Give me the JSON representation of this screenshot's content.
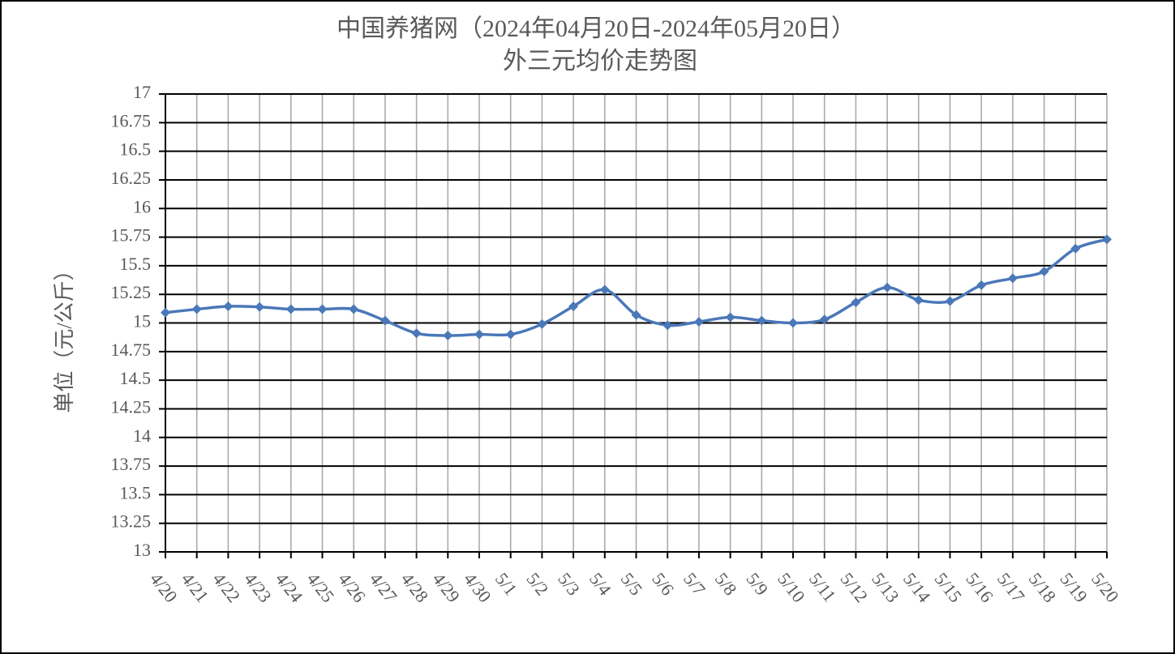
{
  "chart_data": {
    "type": "line",
    "title": "中国养猪网（2024年04月20日-2024年05月20日）",
    "subtitle": "外三元均价走势图",
    "y_label": "单位（元/公斤）",
    "categories": [
      "4/20",
      "4/21",
      "4/22",
      "4/23",
      "4/24",
      "4/25",
      "4/26",
      "4/27",
      "4/28",
      "4/29",
      "4/30",
      "5/1",
      "5/2",
      "5/3",
      "5/4",
      "5/5",
      "5/6",
      "5/7",
      "5/8",
      "5/9",
      "5/10",
      "5/11",
      "5/12",
      "5/13",
      "5/14",
      "5/15",
      "5/16",
      "5/17",
      "5/18",
      "5/19",
      "5/20"
    ],
    "series": [
      {
        "name": "外三元均价",
        "color": "#4a78b8",
        "values": [
          15.09,
          15.12,
          15.145,
          15.14,
          15.12,
          15.12,
          15.12,
          15.02,
          14.91,
          14.89,
          14.9,
          14.9,
          14.99,
          15.145,
          15.29,
          15.07,
          14.98,
          15.01,
          15.05,
          15.02,
          15.0,
          15.03,
          15.18,
          15.31,
          15.2,
          15.19,
          15.33,
          15.39,
          15.45,
          15.65,
          15.73
        ]
      }
    ],
    "ylim": [
      13,
      17
    ],
    "yticks": [
      13,
      13.25,
      13.5,
      13.75,
      14,
      14.25,
      14.5,
      14.75,
      15,
      15.25,
      15.5,
      15.75,
      16,
      16.25,
      16.5,
      16.75,
      17
    ],
    "grid": true
  }
}
